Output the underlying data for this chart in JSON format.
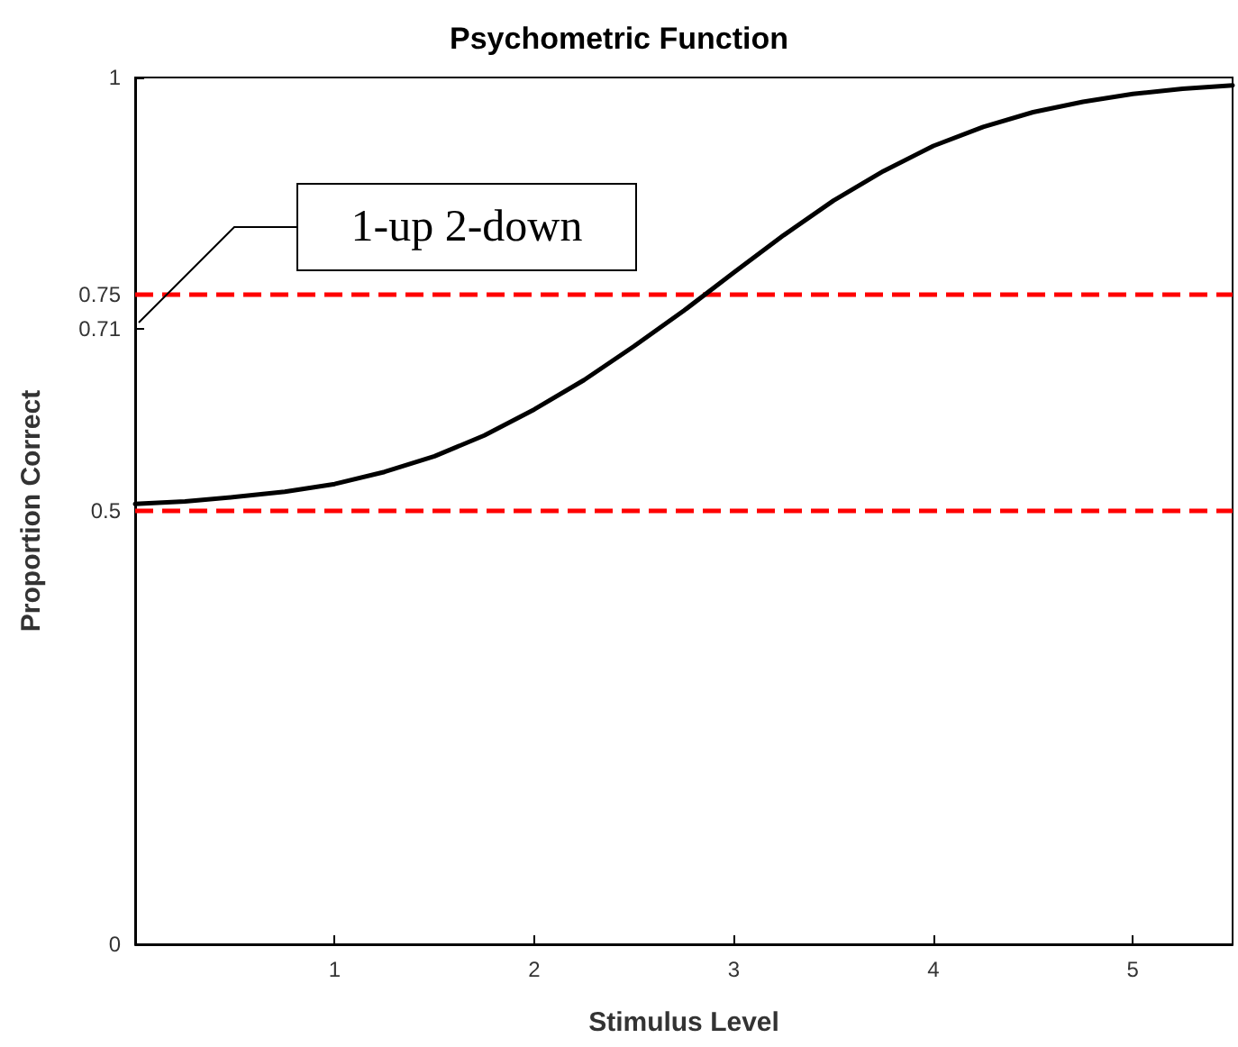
{
  "chart_data": {
    "type": "line",
    "title": "Psychometric Function",
    "xlabel": "Stimulus Level",
    "ylabel": "Proportion Correct",
    "x": [
      0,
      0.25,
      0.5,
      0.75,
      1,
      1.25,
      1.5,
      1.75,
      2,
      2.25,
      2.5,
      2.75,
      3,
      3.25,
      3.5,
      3.75,
      4,
      4.25,
      4.5,
      4.75,
      5,
      5.25,
      5.5
    ],
    "series": [
      {
        "color": "#000000",
        "values": [
          0.508,
          0.511,
          0.516,
          0.522,
          0.531,
          0.545,
          0.563,
          0.587,
          0.617,
          0.651,
          0.69,
          0.731,
          0.775,
          0.818,
          0.858,
          0.892,
          0.921,
          0.943,
          0.96,
          0.972,
          0.981,
          0.987,
          0.991
        ]
      }
    ],
    "xlim": [
      0,
      5.5
    ],
    "xticks": [
      1,
      2,
      3,
      4,
      5
    ],
    "ylim": [
      0,
      1
    ],
    "yticks": [
      0,
      0.5,
      0.71,
      0.75,
      1
    ],
    "ref_lines": [
      {
        "axis": "y",
        "value": 0.75,
        "label": null,
        "color": "#ff0000",
        "line_style": "dashed"
      },
      {
        "axis": "y",
        "value": 0.5,
        "label": null,
        "color": "#ff0000",
        "line_style": "dashed"
      }
    ],
    "annotations": [
      "1-up 2-down"
    ],
    "grid": false,
    "marker": "none",
    "line_style": "solid"
  }
}
